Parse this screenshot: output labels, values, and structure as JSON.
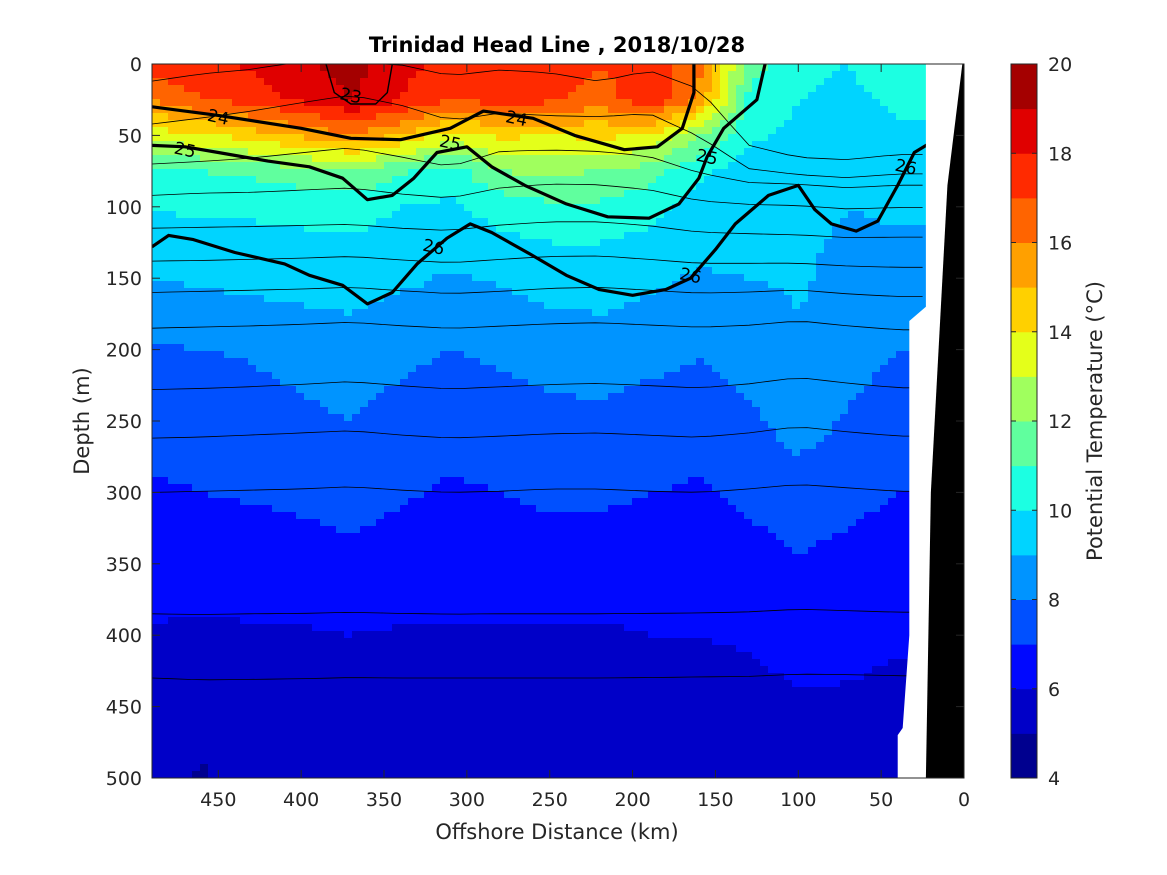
{
  "chart_data": {
    "type": "heatmap",
    "title": "Trinidad Head Line , 2018/10/28",
    "xlabel": "Offshore Distance (km)",
    "ylabel": "Depth (m)",
    "colorbar_label": "Potential Temperature (°C)",
    "xlim": [
      490,
      0
    ],
    "x_direction": "reversed",
    "ylim": [
      0,
      500
    ],
    "y_direction": "reversed",
    "x_ticks": [
      "450",
      "400",
      "350",
      "300",
      "250",
      "200",
      "150",
      "100",
      "50",
      "0"
    ],
    "y_ticks": [
      "0",
      "50",
      "100",
      "150",
      "200",
      "250",
      "300",
      "350",
      "400",
      "450",
      "500"
    ],
    "colorbar": {
      "min": 4,
      "max": 20,
      "step": 1,
      "tick_labels": [
        "4",
        "6",
        "8",
        "10",
        "12",
        "14",
        "16",
        "18",
        "20"
      ],
      "colors": [
        "#00008f",
        "#0000c8",
        "#0008ff",
        "#0050ff",
        "#0094ff",
        "#00d4ff",
        "#1cffe2",
        "#60ff9e",
        "#a0ff5e",
        "#e4ff1a",
        "#ffd000",
        "#ffa000",
        "#ff6400",
        "#ff2a00",
        "#e00000",
        "#a40000"
      ]
    },
    "columns_x_km": [
      490,
      460,
      430,
      400,
      370,
      340,
      310,
      280,
      250,
      220,
      190,
      160,
      130,
      100,
      70,
      40,
      25
    ],
    "depth_levels_m": [
      0,
      25,
      50,
      75,
      100,
      125,
      150,
      175,
      200,
      250,
      300,
      350,
      400,
      450,
      500
    ],
    "temperature_c": [
      [
        17.5,
        17.8,
        18.2,
        18.8,
        19.4,
        18.4,
        17.5,
        18.0,
        17.8,
        17.0,
        17.6,
        16.4,
        11.5,
        10.2,
        10.0,
        10.5,
        10.5
      ],
      [
        16.0,
        17.0,
        17.4,
        18.2,
        19.0,
        18.0,
        17.0,
        17.5,
        17.2,
        16.5,
        17.8,
        15.8,
        10.8,
        10.0,
        9.8,
        10.2,
        10.2
      ],
      [
        13.5,
        13.8,
        14.5,
        15.2,
        15.8,
        15.0,
        13.5,
        14.2,
        14.0,
        14.2,
        14.0,
        12.0,
        10.2,
        9.8,
        9.5,
        9.8,
        9.8
      ],
      [
        10.8,
        11.0,
        11.2,
        11.6,
        12.0,
        11.2,
        10.5,
        12.0,
        12.2,
        12.0,
        11.5,
        10.2,
        9.6,
        9.5,
        9.2,
        9.4,
        9.4
      ],
      [
        10.0,
        10.2,
        10.2,
        10.3,
        10.4,
        10.0,
        9.8,
        10.4,
        10.8,
        10.8,
        10.4,
        9.6,
        9.4,
        9.3,
        9.0,
        9.1,
        9.1
      ],
      [
        9.6,
        9.6,
        9.7,
        9.8,
        9.9,
        9.6,
        9.4,
        9.8,
        10.0,
        10.0,
        9.7,
        9.3,
        9.2,
        9.1,
        8.9,
        8.9,
        8.9
      ],
      [
        9.0,
        9.1,
        9.2,
        9.3,
        9.5,
        9.2,
        8.9,
        9.1,
        9.4,
        9.5,
        9.2,
        8.9,
        9.0,
        9.1,
        8.8,
        8.6,
        8.6
      ],
      [
        8.6,
        8.7,
        8.8,
        8.9,
        9.0,
        8.7,
        8.5,
        8.7,
        8.9,
        9.0,
        8.8,
        8.6,
        8.7,
        9.0,
        8.6,
        8.3,
        8.3
      ],
      [
        7.9,
        8.0,
        8.1,
        8.3,
        8.6,
        8.3,
        8.0,
        8.2,
        8.4,
        8.5,
        8.3,
        8.1,
        8.4,
        8.9,
        8.4,
        8.0,
        8.0
      ],
      [
        7.3,
        7.4,
        7.6,
        7.8,
        8.0,
        7.6,
        7.3,
        7.5,
        7.7,
        7.8,
        7.6,
        7.4,
        7.8,
        8.4,
        7.9,
        7.5,
        7.5
      ],
      [
        6.9,
        7.0,
        7.1,
        7.2,
        7.4,
        7.1,
        6.9,
        7.0,
        7.2,
        7.2,
        7.0,
        6.9,
        7.2,
        7.6,
        7.3,
        7.0,
        7.0
      ],
      [
        6.5,
        6.5,
        6.5,
        6.6,
        6.7,
        6.6,
        6.4,
        6.5,
        6.5,
        6.5,
        6.4,
        6.5,
        6.6,
        6.9,
        6.7,
        6.5,
        6.5
      ],
      [
        5.9,
        5.8,
        5.9,
        5.9,
        6.0,
        5.9,
        5.9,
        5.9,
        5.9,
        5.9,
        6.0,
        6.0,
        6.1,
        6.3,
        6.2,
        6.1,
        6.1
      ],
      [
        5.6,
        5.4,
        5.4,
        5.5,
        5.6,
        5.6,
        5.6,
        5.6,
        5.6,
        5.6,
        5.6,
        5.7,
        5.7,
        5.9,
        5.9,
        5.8,
        5.8
      ],
      [
        5.4,
        4.9,
        5.3,
        5.4,
        5.4,
        5.4,
        5.4,
        5.4,
        5.4,
        5.4,
        5.4,
        5.5,
        5.5,
        5.6,
        5.6,
        5.6,
        5.6
      ]
    ],
    "contour_lines": [
      {
        "label": "23",
        "bold": false,
        "label_at": [
          370,
          22
        ],
        "points": [
          [
            385,
            0
          ],
          [
            380,
            20
          ],
          [
            370,
            28
          ],
          [
            355,
            28
          ],
          [
            348,
            20
          ],
          [
            345,
            0
          ]
        ]
      },
      {
        "label": "24",
        "bold": true,
        "label_at": [
          450,
          37
        ],
        "points": [
          [
            490,
            30
          ],
          [
            450,
            36
          ],
          [
            400,
            45
          ],
          [
            370,
            52
          ],
          [
            340,
            53
          ],
          [
            310,
            45
          ],
          [
            290,
            33
          ],
          [
            260,
            38
          ],
          [
            235,
            50
          ],
          [
            205,
            60
          ],
          [
            185,
            58
          ],
          [
            170,
            45
          ],
          [
            163,
            20
          ],
          [
            163,
            0
          ]
        ]
      },
      {
        "label": "24",
        "bold": true,
        "label_at": [
          270,
          38
        ],
        "points": []
      },
      {
        "label": "25",
        "bold": true,
        "label_at": [
          470,
          60
        ],
        "points": [
          [
            490,
            57
          ],
          [
            470,
            58
          ],
          [
            450,
            62
          ],
          [
            420,
            68
          ],
          [
            395,
            72
          ],
          [
            375,
            80
          ],
          [
            360,
            95
          ],
          [
            345,
            92
          ],
          [
            332,
            80
          ],
          [
            318,
            62
          ],
          [
            300,
            58
          ],
          [
            285,
            72
          ],
          [
            265,
            85
          ],
          [
            240,
            98
          ],
          [
            215,
            107
          ],
          [
            190,
            108
          ],
          [
            172,
            98
          ],
          [
            160,
            80
          ],
          [
            155,
            65
          ],
          [
            145,
            45
          ],
          [
            125,
            25
          ],
          [
            120,
            0
          ]
        ]
      },
      {
        "label": "25",
        "bold": true,
        "label_at": [
          310,
          55
        ],
        "points": []
      },
      {
        "label": "25",
        "bold": true,
        "label_at": [
          155,
          65
        ],
        "points": []
      },
      {
        "label": "26",
        "bold": true,
        "label_at": [
          320,
          128
        ],
        "points": [
          [
            490,
            128
          ],
          [
            480,
            120
          ],
          [
            465,
            123
          ],
          [
            440,
            132
          ],
          [
            410,
            140
          ],
          [
            395,
            148
          ],
          [
            375,
            155
          ],
          [
            360,
            168
          ],
          [
            345,
            160
          ],
          [
            330,
            140
          ],
          [
            312,
            122
          ],
          [
            298,
            112
          ],
          [
            285,
            118
          ],
          [
            262,
            133
          ],
          [
            240,
            148
          ],
          [
            220,
            158
          ],
          [
            200,
            162
          ],
          [
            180,
            158
          ],
          [
            165,
            150
          ],
          [
            150,
            130
          ],
          [
            138,
            112
          ],
          [
            118,
            92
          ],
          [
            100,
            85
          ],
          [
            90,
            102
          ],
          [
            80,
            112
          ],
          [
            65,
            117
          ],
          [
            52,
            110
          ],
          [
            40,
            85
          ],
          [
            30,
            62
          ],
          [
            20,
            55
          ]
        ]
      },
      {
        "label": "26",
        "bold": true,
        "label_at": [
          165,
          148
        ],
        "points": []
      },
      {
        "label": "26",
        "bold": true,
        "label_at": [
          35,
          72
        ],
        "points": []
      }
    ],
    "thin_contour_depths_m": [
      12,
      42,
      70,
      92,
      115,
      138,
      160,
      185,
      228,
      262,
      300,
      385,
      430
    ],
    "land_mask": {
      "white_gap_x_km": [
        40,
        25
      ],
      "black_land_x_km": [
        25,
        0
      ]
    }
  }
}
